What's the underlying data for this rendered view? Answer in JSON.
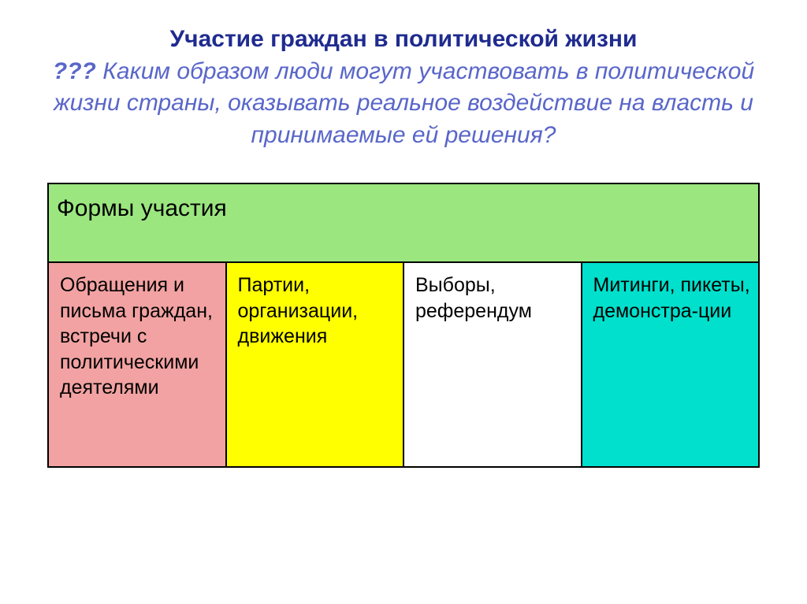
{
  "heading": {
    "title": "Участие граждан в политической жизни",
    "question_marks": "???",
    "subtitle": "Каким образом люди могут участвовать в политической жизни страны, оказывать реальное воздействие на власть и принимаемые ей решения?"
  },
  "table": {
    "header": "Формы участия",
    "header_bg": "#9be67f",
    "cells": [
      {
        "text": "Обращения и письма граждан, встречи с политическими деятелями",
        "bg": "#f2a2a2"
      },
      {
        "text": "Партии, организации, движения",
        "bg": "#ffff00"
      },
      {
        "text": "Выборы, референдум",
        "bg": "#ffffff"
      },
      {
        "text": "Митинги, пикеты, демонстра-ции",
        "bg": "#00e0cc"
      }
    ]
  },
  "colors": {
    "title_color": "#1f2b8f",
    "subtitle_color": "#5966c9",
    "border": "#000000"
  }
}
